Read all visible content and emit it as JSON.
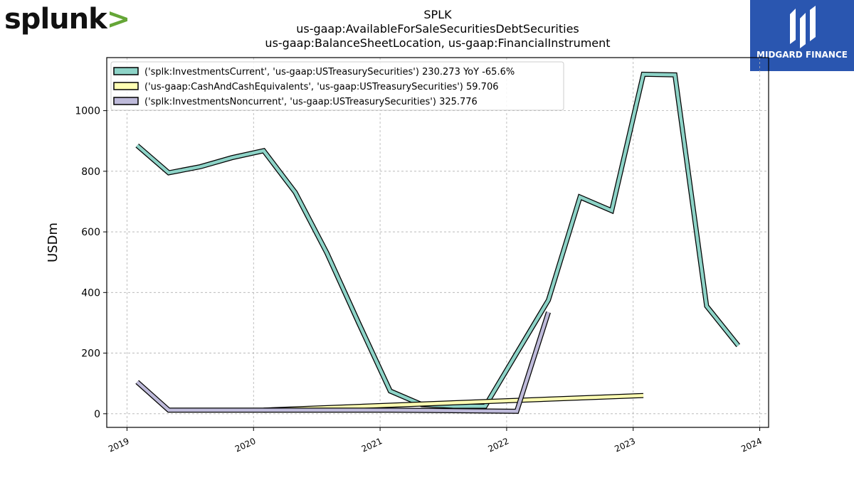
{
  "brand": {
    "left_logo_text": "splunk",
    "left_logo_chevron": ">",
    "right_logo_text": "MIDGARD FINANCE",
    "chevron_color": "#65a637",
    "right_bg_color": "#2a56b0"
  },
  "chart_data": {
    "type": "line",
    "title": [
      "SPLK",
      "us-gaap:AvailableForSaleSecuritiesDebtSecurities",
      "us-gaap:BalanceSheetLocation, us-gaap:FinancialInstrument"
    ],
    "ylabel": "USDm",
    "xlabel": "",
    "x_ticks": [
      "2019",
      "2020",
      "2021",
      "2022",
      "2023",
      "2024"
    ],
    "y_ticks": [
      0,
      200,
      400,
      600,
      800,
      1000
    ],
    "xlim": [
      2018.84,
      2024.07
    ],
    "ylim": [
      -45,
      1175
    ],
    "grid": true,
    "legend_position": "top-left",
    "series": [
      {
        "name": "('splk:InvestmentsCurrent', 'us-gaap:USTreasurySecurities') 230.273 YoY -65.6%",
        "color": "#8dd3c7",
        "x": [
          2019.08,
          2019.33,
          2019.58,
          2019.83,
          2020.08,
          2020.33,
          2020.58,
          2020.83,
          2021.08,
          2021.33,
          2021.58,
          2021.83,
          2022.08,
          2022.33,
          2022.58,
          2022.83,
          2023.08,
          2023.33,
          2023.58,
          2023.83
        ],
        "y": [
          885,
          795,
          815,
          845,
          868,
          730,
          530,
          300,
          75,
          30,
          25,
          25,
          200,
          375,
          715,
          670,
          1120,
          1118,
          355,
          225
        ]
      },
      {
        "name": "('us-gaap:CashAndCashEquivalents', 'us-gaap:USTreasurySecurities') 59.706",
        "color": "#ffffb3",
        "x": [
          2020.08,
          2023.08
        ],
        "y": [
          12,
          60
        ]
      },
      {
        "name": "('splk:InvestmentsNoncurrent', 'us-gaap:USTreasurySecurities') 325.776",
        "color": "#bebada",
        "x": [
          2019.08,
          2019.33,
          2020.08,
          2021.08,
          2022.08,
          2022.33
        ],
        "y": [
          105,
          12,
          12,
          12,
          8,
          335
        ]
      }
    ]
  }
}
